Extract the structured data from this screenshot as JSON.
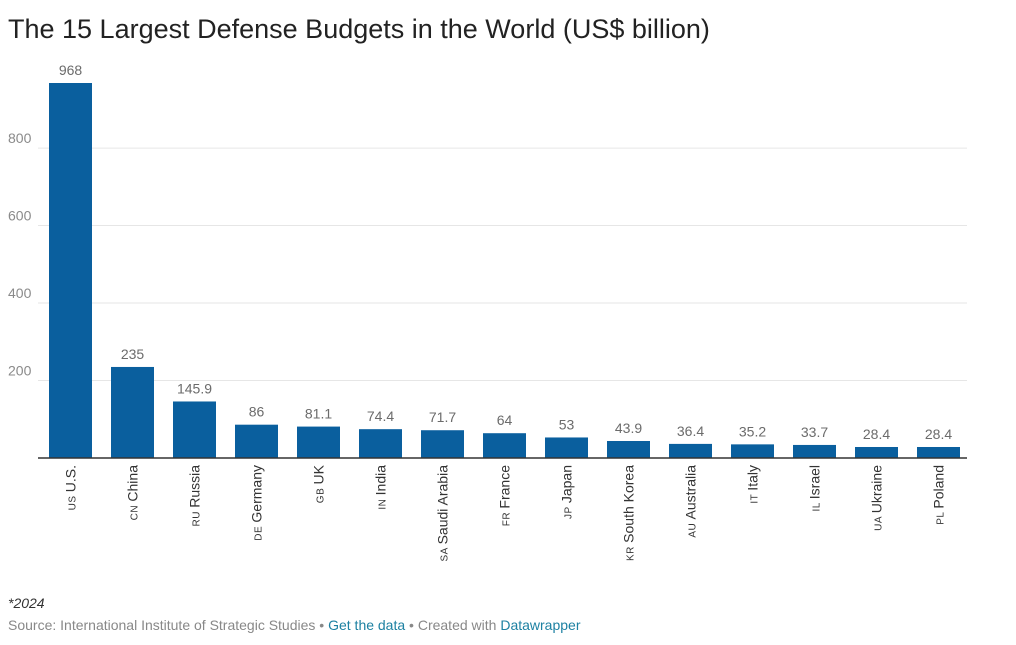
{
  "header": {
    "title": "The 15 Largest Defense Budgets in the World (US$ billion)"
  },
  "chart_data": {
    "type": "bar",
    "title": "The 15 Largest Defense Budgets in the World (US$ billion)",
    "categories": [
      "U.S.",
      "China",
      "Russia",
      "Germany",
      "UK",
      "India",
      "Saudi Arabia",
      "France",
      "Japan",
      "South Korea",
      "Australia",
      "Italy",
      "Israel",
      "Ukraine",
      "Poland"
    ],
    "country_codes": [
      "US",
      "CN",
      "RU",
      "DE",
      "GB",
      "IN",
      "SA",
      "FR",
      "JP",
      "KR",
      "AU",
      "IT",
      "IL",
      "UA",
      "PL"
    ],
    "values": [
      968,
      235,
      145.9,
      86,
      81.1,
      74.4,
      71.7,
      64,
      53,
      43.9,
      36.4,
      35.2,
      33.7,
      28.4,
      28.4
    ],
    "value_labels": [
      "968",
      "235",
      "145.9",
      "86",
      "81.1",
      "74.4",
      "71.7",
      "64",
      "53",
      "43.9",
      "36.4",
      "35.2",
      "33.7",
      "28.4",
      "28.4"
    ],
    "yticks": [
      200,
      400,
      600,
      800
    ],
    "ylim": [
      0,
      968
    ],
    "xlabel": "",
    "ylabel": "",
    "grid": true,
    "legend": "none",
    "colors": {
      "bar": "#0a5f9e",
      "grid": "#e6e6e6",
      "axis": "#333333"
    }
  },
  "note": "*2024",
  "footer": {
    "source": "Source: International Institute of Strategic Studies",
    "sep1": " • ",
    "get_data": "Get the data",
    "sep2": " • Created with ",
    "tool": "Datawrapper"
  }
}
